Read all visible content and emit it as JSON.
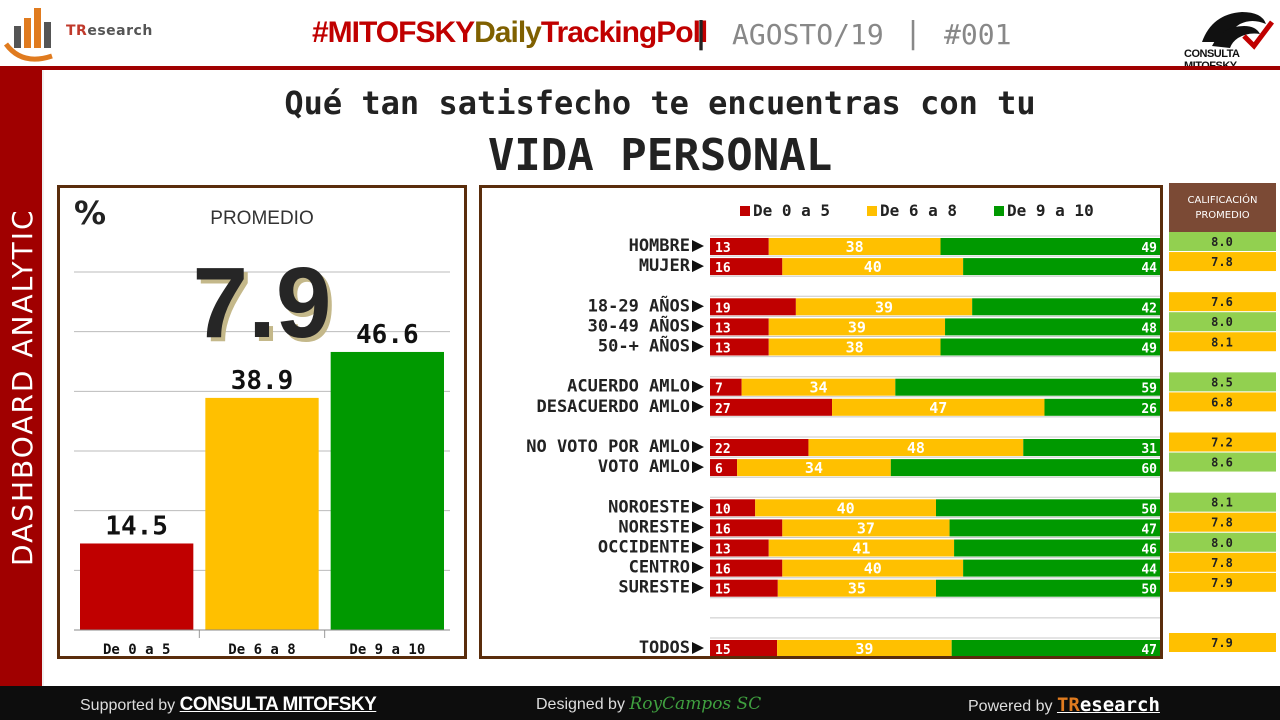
{
  "header": {
    "logo_left_text_accent": "TR",
    "logo_left_text_rest": "esearch",
    "hashtag_part1": "#MITOFSKY",
    "hashtag_part2": "Daily",
    "hashtag_part3": "TrackingPoll",
    "separator": "|",
    "date": "AGOSTO/19",
    "number": "#001",
    "logo_right_text": "CONSULTA MITOFSKY"
  },
  "sidebar": {
    "label": "DASHBOARD ANALYTIC"
  },
  "title": {
    "line1": "Qué tan satisfecho te encuentras con tu",
    "line2": "VIDA PERSONAL"
  },
  "summary": {
    "percent_symbol": "%",
    "average_label": "PROMEDIO",
    "average_value": "7.9"
  },
  "colors": {
    "low": "#c00000",
    "mid": "#ffc000",
    "high": "#009900",
    "border": "#5a2d0c",
    "sidebar": "#a00000",
    "avg_high": "#92d050",
    "avg_mid": "#ffc000"
  },
  "chart_data": [
    {
      "type": "bar",
      "categories": [
        "De 0 a 5",
        "De 6 a 8",
        "De 9 a 10"
      ],
      "values": [
        14.5,
        38.9,
        46.6
      ],
      "value_labels": [
        "14.5",
        "38.9",
        "46.6"
      ],
      "ylim": [
        0,
        60
      ],
      "grid": true
    },
    {
      "type": "bar",
      "orientation": "horizontal",
      "stacked": true,
      "legend": [
        "De 0 a 5",
        "De 6 a 8",
        "De 9 a 10"
      ],
      "legend_position": "top",
      "avg_header": "CALIFICACIÓN PROMEDIO",
      "rows": [
        {
          "label": "HOMBRE",
          "values": [
            13,
            38,
            49
          ],
          "avg": "8.0",
          "avg_level": "high"
        },
        {
          "label": "MUJER",
          "values": [
            16,
            40,
            44
          ],
          "avg": "7.8",
          "avg_level": "mid"
        },
        null,
        {
          "label": "18-29 AÑOS",
          "values": [
            19,
            39,
            42
          ],
          "avg": "7.6",
          "avg_level": "mid"
        },
        {
          "label": "30-49 AÑOS",
          "values": [
            13,
            39,
            48
          ],
          "avg": "8.0",
          "avg_level": "high"
        },
        {
          "label": "50-+ AÑOS",
          "values": [
            13,
            38,
            49
          ],
          "avg": "8.1",
          "avg_level": "mid"
        },
        null,
        {
          "label": "ACUERDO AMLO",
          "values": [
            7,
            34,
            59
          ],
          "avg": "8.5",
          "avg_level": "high"
        },
        {
          "label": "DESACUERDO AMLO",
          "values": [
            27,
            47,
            26
          ],
          "avg": "6.8",
          "avg_level": "mid"
        },
        null,
        {
          "label": "NO VOTO POR AMLO",
          "values": [
            22,
            48,
            31
          ],
          "avg": "7.2",
          "avg_level": "mid"
        },
        {
          "label": "VOTO AMLO",
          "values": [
            6,
            34,
            60
          ],
          "avg": "8.6",
          "avg_level": "high"
        },
        null,
        {
          "label": "NOROESTE",
          "values": [
            10,
            40,
            50
          ],
          "avg": "8.1",
          "avg_level": "high"
        },
        {
          "label": "NORESTE",
          "values": [
            16,
            37,
            47
          ],
          "avg": "7.8",
          "avg_level": "mid"
        },
        {
          "label": "OCCIDENTE",
          "values": [
            13,
            41,
            46
          ],
          "avg": "8.0",
          "avg_level": "high"
        },
        {
          "label": "CENTRO",
          "values": [
            16,
            40,
            44
          ],
          "avg": "7.8",
          "avg_level": "mid"
        },
        {
          "label": "SURESTE",
          "values": [
            15,
            35,
            50
          ],
          "avg": "7.9",
          "avg_level": "mid"
        },
        null,
        null,
        {
          "label": "TODOS",
          "values": [
            15,
            39,
            47
          ],
          "avg": "7.9",
          "avg_level": "mid"
        }
      ]
    }
  ],
  "footer": {
    "supported_prefix": "Supported by",
    "supported_brand": "CONSULTA MITOFSKY",
    "designed_prefix": "Designed by",
    "designed_brand": "RoyCampos SC",
    "powered_prefix": "Powered by",
    "powered_brand_accent": "TR",
    "powered_brand_rest": "esearch"
  }
}
